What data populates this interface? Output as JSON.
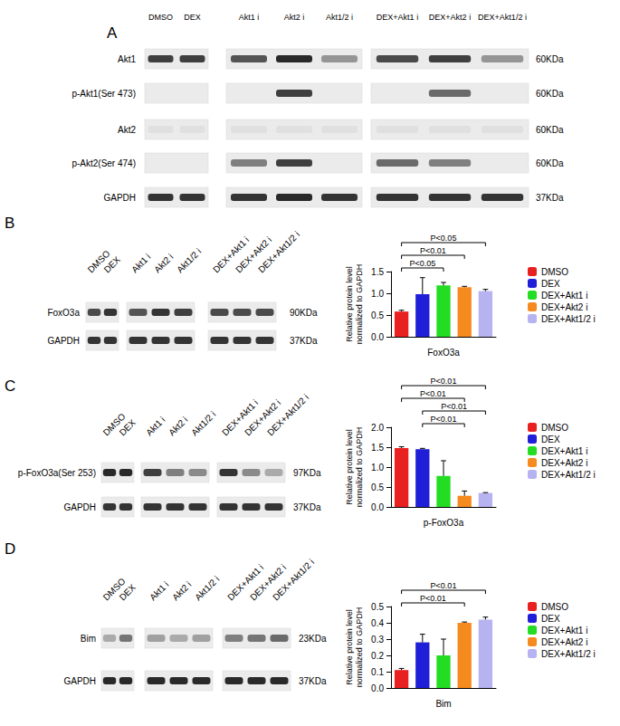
{
  "chart_data": [
    {
      "type": "bar",
      "categories": [
        "DMSO",
        "DEX",
        "DEX+Akt1 i",
        "DEX+Akt2 i",
        "DEX+Akt1/2 i"
      ],
      "values": [
        0.58,
        0.98,
        1.18,
        1.14,
        1.05
      ],
      "errors": [
        0.03,
        0.38,
        0.07,
        0.02,
        0.04
      ],
      "colors": [
        "#e8201f",
        "#1f1fd8",
        "#22dd22",
        "#f58a1f",
        "#b6b3f0"
      ],
      "ylim": [
        0,
        1.5
      ],
      "yticks": [
        {
          "value": 0,
          "label": "0.0"
        },
        {
          "value": 0.5,
          "label": "0.5"
        },
        {
          "value": 1,
          "label": "1.0"
        },
        {
          "value": 1.5,
          "label": "1.5"
        }
      ],
      "x_label": "FoxO3a",
      "y_label": "Relative protein level\nnormalized to GAPDH",
      "annotations": [
        {
          "text": "P<0.05",
          "from": "DMSO",
          "to": "DEX+Akt1/2 i"
        },
        {
          "text": "P<0.01",
          "from": "DMSO",
          "to": "DEX+Akt2 i"
        },
        {
          "text": "P<0.05",
          "from": "DMSO",
          "to": "DEX+Akt1 i"
        }
      ],
      "tick_labels": "y",
      "grid": false,
      "legend": "right"
    },
    {
      "type": "bar",
      "categories": [
        "DMSO",
        "DEX",
        "DEX+Akt1 i",
        "DEX+Akt2 i",
        "DEX+Akt1/2 i"
      ],
      "values": [
        1.48,
        1.45,
        0.78,
        0.28,
        0.35
      ],
      "errors": [
        0.03,
        0.02,
        0.38,
        0.12,
        0.01
      ],
      "colors": [
        "#e8201f",
        "#1f1fd8",
        "#22dd22",
        "#f58a1f",
        "#b6b3f0"
      ],
      "ylim": [
        0,
        2
      ],
      "yticks": [
        {
          "value": 0,
          "label": "0.0"
        },
        {
          "value": 0.5,
          "label": "0.5"
        },
        {
          "value": 1,
          "label": "1.0"
        },
        {
          "value": 1.5,
          "label": "1.5"
        },
        {
          "value": 2,
          "label": "2.0"
        }
      ],
      "x_label": "p-FoxO3a",
      "y_label": "Relative protein level\nnormalized to GAPDH",
      "annotations": [
        {
          "text": "P<0.01",
          "from": "DMSO",
          "to": "DEX+Akt1/2 i"
        },
        {
          "text": "P<0.01",
          "from": "DMSO",
          "to": "DEX+Akt2 i"
        },
        {
          "text": "P<0.01",
          "from": "DEX",
          "to": "DEX+Akt1/2 i"
        },
        {
          "text": "P<0.01",
          "from": "DEX",
          "to": "DEX+Akt2 i"
        }
      ],
      "tick_labels": "y",
      "grid": false,
      "legend": "right"
    },
    {
      "type": "bar",
      "categories": [
        "DMSO",
        "DEX",
        "DEX+Akt1 i",
        "DEX+Akt2 i",
        "DEX+Akt1/2 i"
      ],
      "values": [
        0.11,
        0.28,
        0.2,
        0.4,
        0.42
      ],
      "errors": [
        0.01,
        0.05,
        0.1,
        0.005,
        0.015
      ],
      "colors": [
        "#e8201f",
        "#1f1fd8",
        "#22dd22",
        "#f58a1f",
        "#b6b3f0"
      ],
      "ylim": [
        0,
        0.5
      ],
      "yticks": [
        {
          "value": 0,
          "label": "0.0"
        },
        {
          "value": 0.1,
          "label": "0.1"
        },
        {
          "value": 0.2,
          "label": "0.2"
        },
        {
          "value": 0.3,
          "label": "0.3"
        },
        {
          "value": 0.4,
          "label": "0.4"
        },
        {
          "value": 0.5,
          "label": "0.5"
        }
      ],
      "x_label": "Bim",
      "y_label": "Relative protein level\nnormalized to GAPDH",
      "annotations": [
        {
          "text": "P<0.01",
          "from": "DMSO",
          "to": "DEX+Akt1/2 i"
        },
        {
          "text": "P<0.01",
          "from": "DMSO",
          "to": "DEX+Akt2 i"
        }
      ],
      "tick_labels": "y",
      "grid": false,
      "legend": "right"
    }
  ],
  "blots": [
    {
      "panel": "A",
      "lanes": [
        [
          "DMSO",
          "DEX"
        ],
        [
          "Akt1 i",
          "Akt2 i",
          "Akt1/2 i"
        ],
        [
          "DEX+Akt1 i",
          "DEX+Akt2 i",
          "DEX+Akt1/2 i"
        ]
      ],
      "rows": [
        {
          "label": "Akt1",
          "kda": "60KDa",
          "bands": [
            [
              0.8,
              0.8
            ],
            [
              0.7,
              0.9,
              0.4
            ],
            [
              0.75,
              0.8,
              0.4
            ]
          ]
        },
        {
          "label": "p-Akt1(Ser 473)",
          "kda": "60KDa",
          "bands": [
            [
              0,
              0
            ],
            [
              0,
              0.8,
              0
            ],
            [
              0,
              0.6,
              0
            ]
          ]
        },
        {
          "label": "Akt2",
          "kda": "60KDa",
          "bands": [
            [
              0.05,
              0.05
            ],
            [
              0.05,
              0.05,
              0.05
            ],
            [
              0.05,
              0.05,
              0.05
            ]
          ]
        },
        {
          "label": "p-Akt2(Ser 474)",
          "kda": "60KDa",
          "bands": [
            [
              0,
              0
            ],
            [
              0.5,
              0.8,
              0
            ],
            [
              0.6,
              0.5,
              0
            ]
          ]
        },
        {
          "label": "GAPDH",
          "kda": "37KDa",
          "bands": [
            [
              0.85,
              0.85
            ],
            [
              0.85,
              0.9,
              0.85
            ],
            [
              0.85,
              0.85,
              0.85
            ]
          ]
        }
      ]
    },
    {
      "panel": "B",
      "lanes": [
        [
          "DMSO",
          "DEX"
        ],
        [
          "Akt1 i",
          "Akt2 i",
          "Akt1/2 i"
        ],
        [
          "DEX+Akt1 i",
          "DEX+Akt2 i",
          "DEX+Akt1/2 i"
        ]
      ],
      "rows": [
        {
          "label": "FoxO3a",
          "kda": "90KDa",
          "bands": [
            [
              0.75,
              0.85
            ],
            [
              0.7,
              0.85,
              0.8
            ],
            [
              0.75,
              0.75,
              0.75
            ]
          ]
        },
        {
          "label": "GAPDH",
          "kda": "37KDa",
          "bands": [
            [
              0.85,
              0.85
            ],
            [
              0.85,
              0.85,
              0.85
            ],
            [
              0.85,
              0.85,
              0.85
            ]
          ]
        }
      ]
    },
    {
      "panel": "C",
      "lanes": [
        [
          "DMSO",
          "DEX"
        ],
        [
          "Akt1 i",
          "Akt2 i",
          "Akt1/2 i"
        ],
        [
          "DEX+Akt1 i",
          "DEX+Akt2 i",
          "DEX+Akt1/2 i"
        ]
      ],
      "rows": [
        {
          "label": "p-FoxO3a(Ser 253)",
          "kda": "97KDa",
          "bands": [
            [
              0.9,
              0.9
            ],
            [
              0.8,
              0.5,
              0.45
            ],
            [
              0.85,
              0.45,
              0.3
            ]
          ]
        },
        {
          "label": "GAPDH",
          "kda": "37KDa",
          "bands": [
            [
              0.85,
              0.85
            ],
            [
              0.85,
              0.85,
              0.85
            ],
            [
              0.85,
              0.85,
              0.85
            ]
          ]
        }
      ]
    },
    {
      "panel": "D",
      "lanes": [
        [
          "DMSO",
          "DEX"
        ],
        [
          "Akt1 i",
          "Akt2 i",
          "Akt1/2 i"
        ],
        [
          "DEX+Akt1 i",
          "DEX+Akt2 i",
          "DEX+Akt1/2 i"
        ]
      ],
      "rows": [
        {
          "label": "Bim",
          "kda": "23KDa",
          "bands": [
            [
              0.3,
              0.55
            ],
            [
              0.35,
              0.3,
              0.35
            ],
            [
              0.5,
              0.55,
              0.6
            ]
          ]
        },
        {
          "label": "GAPDH",
          "kda": "37KDa",
          "bands": [
            [
              0.9,
              0.9
            ],
            [
              0.9,
              0.9,
              0.9
            ],
            [
              0.9,
              0.9,
              0.9
            ]
          ]
        }
      ]
    }
  ]
}
